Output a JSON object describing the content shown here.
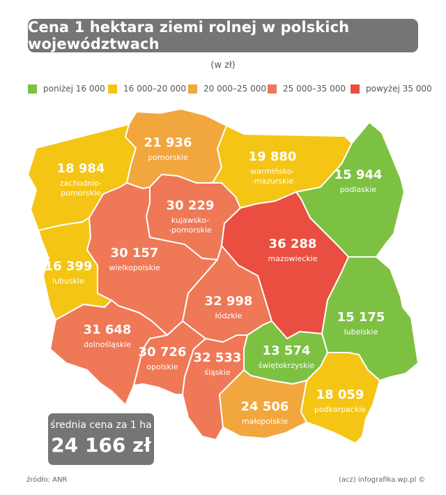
{
  "title": "Cena 1 hektara ziemi rolnej w polskich województwach",
  "subtitle": "(w zł)",
  "legend": [
    {
      "label": "poniżej 16 000",
      "color": "#7dc142"
    },
    {
      "label": "16 000–20 000",
      "color": "#f4c515"
    },
    {
      "label": "20 000–25 000",
      "color": "#f2a63e"
    },
    {
      "label": "25 000–35 000",
      "color": "#ef7856"
    },
    {
      "label": "powyżej 35 000",
      "color": "#e94e40"
    }
  ],
  "regions": [
    {
      "id": "zachodniopomorskie",
      "name": "zachodnio-\npomorskie",
      "value": "18 984",
      "color": "#f4c515"
    },
    {
      "id": "pomorskie",
      "name": "pomorskie",
      "value": "21 936",
      "color": "#f2a63e"
    },
    {
      "id": "warminsko-mazurskie",
      "name": "warmińsko-\n-mazurskie",
      "value": "19 880",
      "color": "#f4c515"
    },
    {
      "id": "podlaskie",
      "name": "podlaskie",
      "value": "15 944",
      "color": "#7dc142"
    },
    {
      "id": "kujawsko-pomorskie",
      "name": "kujawsko-\n-pomorskie",
      "value": "30 229",
      "color": "#ef7856"
    },
    {
      "id": "lubuskie",
      "name": "lubuskie",
      "value": "16 399",
      "color": "#f4c515"
    },
    {
      "id": "wielkopolskie",
      "name": "wielkopolskie",
      "value": "30 157",
      "color": "#ef7856"
    },
    {
      "id": "mazowieckie",
      "name": "mazowieckie",
      "value": "36 288",
      "color": "#e94e40"
    },
    {
      "id": "lodzkie",
      "name": "łódzkie",
      "value": "32 998",
      "color": "#ef7856"
    },
    {
      "id": "lubelskie",
      "name": "lubelskie",
      "value": "15 175",
      "color": "#7dc142"
    },
    {
      "id": "dolnoslaskie",
      "name": "dolnośląskie",
      "value": "31 648",
      "color": "#ef7856"
    },
    {
      "id": "opolskie",
      "name": "opolskie",
      "value": "30 726",
      "color": "#ef7856"
    },
    {
      "id": "slaskie",
      "name": "śląskie",
      "value": "32 533",
      "color": "#ef7856"
    },
    {
      "id": "swietokrzyskie",
      "name": "świętokrzyskie",
      "value": "13 574",
      "color": "#7dc142"
    },
    {
      "id": "malopolskie",
      "name": "małopolskie",
      "value": "24 506",
      "color": "#f2a63e"
    },
    {
      "id": "podkarpackie",
      "name": "podkarpackie",
      "value": "18 059",
      "color": "#f4c515"
    }
  ],
  "average": {
    "label": "średnia cena za 1 ha",
    "value": "24 166 zł"
  },
  "source": "źródło: ANR",
  "credit": "(acz) infografika.wp.pl ©"
}
